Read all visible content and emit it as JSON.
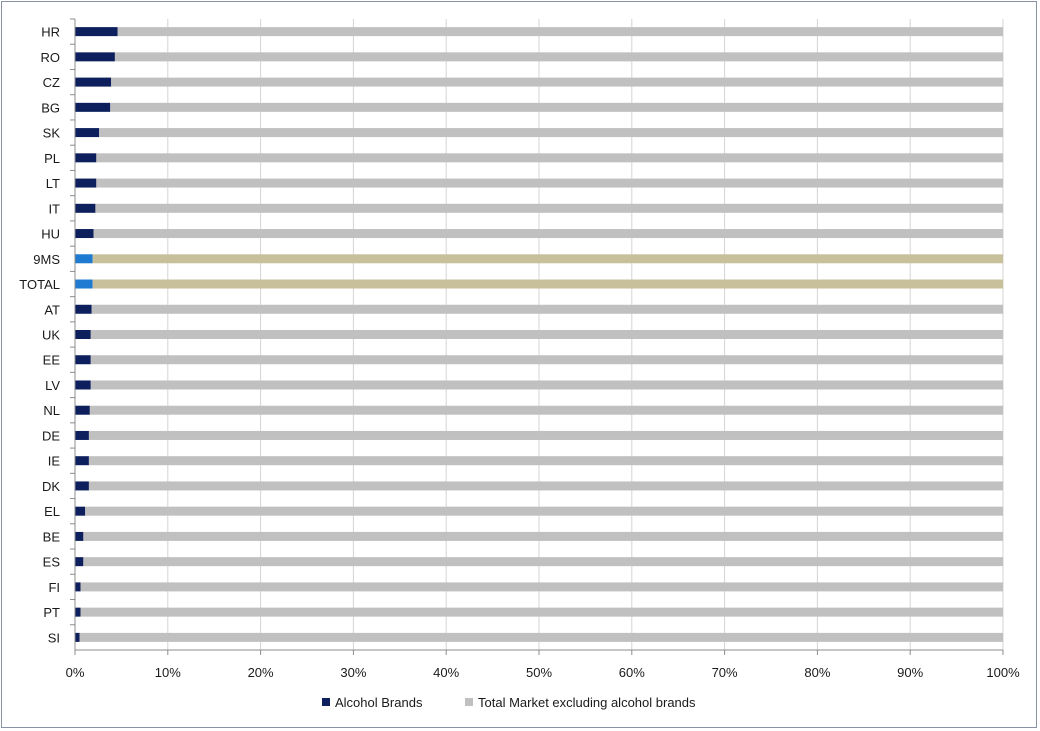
{
  "chart_data": {
    "type": "bar",
    "orientation": "horizontal",
    "stacked": "100%",
    "categories": [
      "HR",
      "RO",
      "CZ",
      "BG",
      "SK",
      "PL",
      "LT",
      "IT",
      "HU",
      "9MS",
      "TOTAL",
      "AT",
      "UK",
      "EE",
      "LV",
      "NL",
      "DE",
      "IE",
      "DK",
      "EL",
      "BE",
      "ES",
      "FI",
      "PT",
      "SI"
    ],
    "series": [
      {
        "name": "Alcohol Brands",
        "color": "#0d1f5c",
        "highlight_color": "#1f7ad1",
        "values": [
          4.6,
          4.3,
          3.9,
          3.8,
          2.6,
          2.3,
          2.3,
          2.2,
          2.0,
          1.9,
          1.9,
          1.8,
          1.7,
          1.7,
          1.7,
          1.6,
          1.5,
          1.5,
          1.5,
          1.1,
          0.9,
          0.9,
          0.6,
          0.6,
          0.5
        ]
      },
      {
        "name": "Total Market excluding alcohol brands",
        "color": "#c0c0c0",
        "highlight_color": "#c8c09a",
        "values": [
          95.4,
          95.7,
          96.1,
          96.2,
          97.4,
          97.7,
          97.7,
          97.8,
          98.0,
          98.1,
          98.1,
          98.2,
          98.3,
          98.3,
          98.3,
          98.4,
          98.5,
          98.5,
          98.5,
          98.9,
          99.1,
          99.1,
          99.4,
          99.4,
          99.5
        ]
      }
    ],
    "highlighted_categories": [
      "9MS",
      "TOTAL"
    ],
    "xlim": [
      0,
      100
    ],
    "x_ticks": [
      "0%",
      "10%",
      "20%",
      "30%",
      "40%",
      "50%",
      "60%",
      "70%",
      "80%",
      "90%",
      "100%"
    ],
    "grid": true,
    "legend_position": "bottom",
    "title": "",
    "xlabel": "",
    "ylabel": ""
  }
}
